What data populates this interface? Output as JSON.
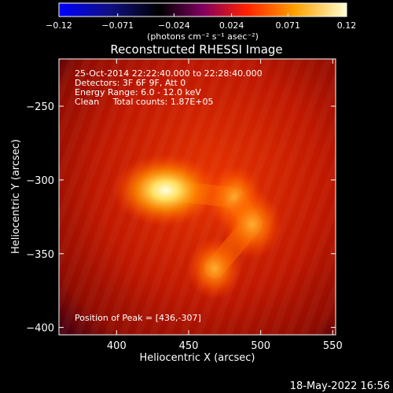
{
  "chart_data": {
    "type": "heatmap",
    "title": "Reconstructed RHESSI Image",
    "xlabel": "Heliocentric X (arcsec)",
    "ylabel": "Heliocentric Y (arcsec)",
    "xlim": [
      360,
      552
    ],
    "ylim": [
      -405,
      -218
    ],
    "x_ticks": [
      400,
      450,
      500,
      550
    ],
    "y_ticks": [
      -250,
      -300,
      -350,
      -400
    ],
    "x_tick_labels": [
      "400",
      "450",
      "500",
      "550"
    ],
    "y_tick_labels": [
      "−250",
      "−300",
      "−350",
      "−400"
    ],
    "colorbar": {
      "range": [
        -0.12,
        0.12
      ],
      "tick_values": [
        -0.12,
        -0.071,
        -0.024,
        0.024,
        0.071,
        0.12
      ],
      "tick_labels": [
        "−0.12",
        "−0.071",
        "−0.024",
        "0.024",
        "0.071",
        "0.12"
      ],
      "colors": [
        "#0000ff",
        "#000000",
        "#800060",
        "#ff3000",
        "#ffb000",
        "#ffffc8"
      ],
      "unit_label": "(photons cm⁻² s⁻¹ asec⁻²)"
    },
    "annotations": [
      "25-Oct-2014 22:22:40.000 to 22:28:40.000",
      "Detectors: 3F 6F 9F, Att 0",
      "Energy Range: 6.0 - 12.0 keV",
      "Clean     Total counts: 1.87E+05"
    ],
    "peak_label": "Position of Peak = [436,-307]",
    "sources": [
      {
        "x": 434,
        "y": -307,
        "intensity": 0.12
      },
      {
        "x": 482,
        "y": -312,
        "intensity": 0.08
      },
      {
        "x": 494,
        "y": -330,
        "intensity": 0.09
      },
      {
        "x": 468,
        "y": -360,
        "intensity": 0.075
      }
    ]
  },
  "footer": {
    "timestamp": "18-May-2022 16:56"
  }
}
